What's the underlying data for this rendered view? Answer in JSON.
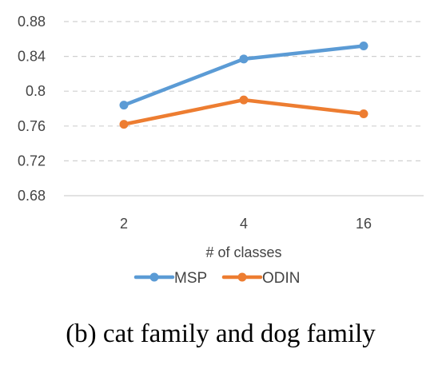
{
  "chart_data": {
    "type": "line",
    "categories": [
      "2",
      "4",
      "16"
    ],
    "xlabel": "# of classes",
    "ylabel": "",
    "ylim": [
      0.68,
      0.88
    ],
    "yticks": [
      "0.68",
      "0.72",
      "0.76",
      "0.8",
      "0.84",
      "0.88"
    ],
    "grid": true,
    "legend_position": "bottom",
    "series": [
      {
        "name": "MSP",
        "color": "#5b9bd5",
        "values": [
          0.784,
          0.837,
          0.852
        ]
      },
      {
        "name": "ODIN",
        "color": "#ed7d31",
        "values": [
          0.762,
          0.79,
          0.774
        ]
      }
    ]
  },
  "caption": "(b) cat family and dog family"
}
